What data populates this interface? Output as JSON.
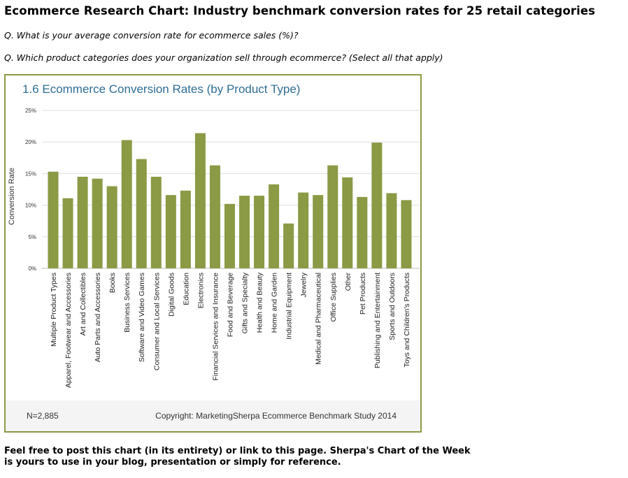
{
  "page": {
    "title": "Ecommerce Research Chart: Industry benchmark conversion rates for 25 retail categories",
    "question_1": "Q. What is your average conversion rate for ecommerce sales (%)?",
    "question_2": "Q. Which product categories does your organization sell through ecommerce? (Select all that apply)",
    "note_line_1": "Feel free to post this chart (in its entirety) or link to this page. Sherpa's Chart of the Week",
    "note_line_2": "is yours to use in your blog, presentation or simply for reference."
  },
  "chart_footer": {
    "sample_size": "N=2,885",
    "copyright": "Copyright: MarketingSherpa Ecommerce Benchmark Study 2014"
  },
  "colors": {
    "bar": "#8a9a45",
    "frame": "#8a9a45",
    "title": "#2e6e96",
    "grid": "#dddddd",
    "footer_bg": "#f4f4f4"
  },
  "chart_data": {
    "type": "bar",
    "title": "1.6 Ecommerce Conversion Rates (by Product Type)",
    "xlabel": "",
    "ylabel": "Conversion Rate",
    "ylim": [
      0,
      25
    ],
    "yticks": [
      0,
      5,
      10,
      15,
      20,
      25
    ],
    "ytick_labels": [
      "0%",
      "5%",
      "10%",
      "15%",
      "20%",
      "25%"
    ],
    "grid": true,
    "categories": [
      "Multiple Product Types",
      "Apparel, Footwear and Accessories",
      "Art and Collectibles",
      "Auto Parts and Accessories",
      "Books",
      "Business Services",
      "Software and Video Games",
      "Consumer and Local Services",
      "Digital Goods",
      "Education",
      "Electronics",
      "Financial Services and Insurance",
      "Food and Beverage",
      "Gifts and Specialty",
      "Health and Beauty",
      "Home and Garden",
      "Industrial Equipment",
      "Jewelry",
      "Medical and Pharmaceutical",
      "Office Supplies",
      "Other",
      "Pet Products",
      "Publishing and Entertainment",
      "Sports and Outdoors",
      "Toys and Children's Products"
    ],
    "values": [
      15.3,
      11.1,
      14.5,
      14.2,
      13.0,
      20.3,
      17.3,
      14.5,
      11.6,
      12.3,
      21.4,
      16.3,
      10.2,
      11.5,
      11.5,
      13.3,
      7.1,
      12.0,
      11.6,
      16.3,
      14.4,
      11.3,
      19.9,
      11.9,
      10.8
    ]
  }
}
